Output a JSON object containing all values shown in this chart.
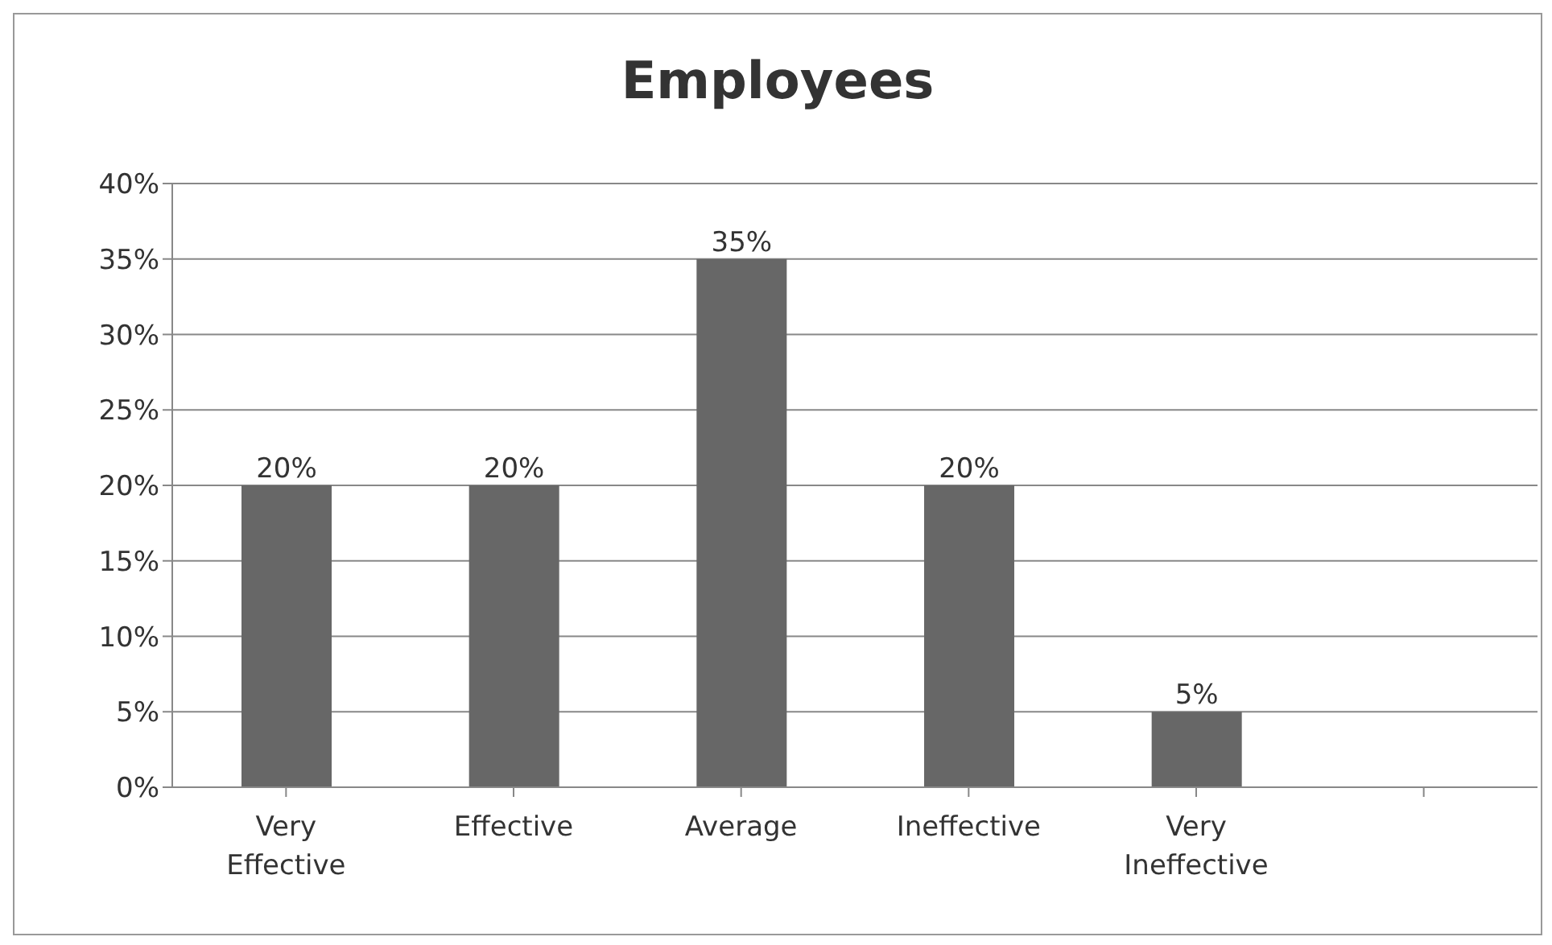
{
  "chart_data": {
    "type": "bar",
    "title": "Employees",
    "categories": [
      "Very Effective",
      "Effective",
      "Average",
      "Ineffective",
      "Very Ineffective",
      null
    ],
    "values": [
      20,
      20,
      35,
      20,
      5,
      null
    ],
    "value_labels": [
      "20%",
      "20%",
      "35%",
      "20%",
      "5%",
      null
    ],
    "color": "#676767",
    "ylim": [
      0,
      40
    ],
    "yticks": [
      {
        "value": 0,
        "label": "0%"
      },
      {
        "value": 5,
        "label": "5%"
      },
      {
        "value": 10,
        "label": "10%"
      },
      {
        "value": 15,
        "label": "15%"
      },
      {
        "value": 20,
        "label": "20%"
      },
      {
        "value": 25,
        "label": "25%"
      },
      {
        "value": 30,
        "label": "30%"
      },
      {
        "value": 35,
        "label": "35%"
      },
      {
        "value": 40,
        "label": "40%"
      }
    ],
    "grid": "y",
    "legend": false
  }
}
